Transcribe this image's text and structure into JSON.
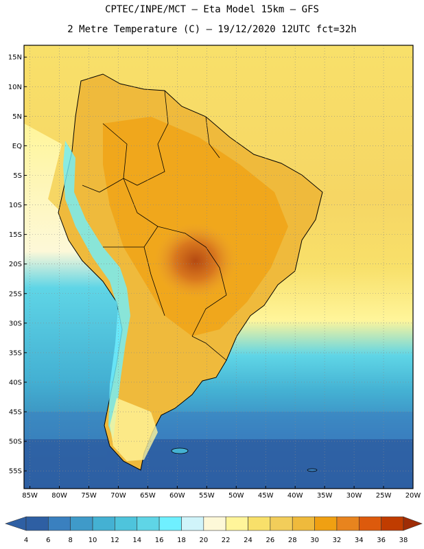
{
  "header": {
    "line1": "CPTEC/INPE/MCT –  Eta Model 15km – GFS",
    "line2": "2 Metre Temperature (C) – 19/12/2020 12UTC fct=32h"
  },
  "map": {
    "lat_labels": [
      "15N",
      "10N",
      "5N",
      "EQ",
      "5S",
      "10S",
      "15S",
      "20S",
      "25S",
      "30S",
      "35S",
      "40S",
      "45S",
      "50S",
      "55S"
    ],
    "lon_labels": [
      "85W",
      "80W",
      "75W",
      "70W",
      "65W",
      "60W",
      "55W",
      "50W",
      "45W",
      "40W",
      "35W",
      "30W",
      "25W",
      "20W"
    ],
    "lat_range": [
      17,
      -58
    ],
    "lon_range": [
      -86,
      -20
    ]
  },
  "legend": {
    "ticks": [
      "4",
      "6",
      "8",
      "10",
      "12",
      "14",
      "16",
      "18",
      "20",
      "22",
      "24",
      "26",
      "28",
      "30",
      "32",
      "34",
      "36",
      "38"
    ],
    "colors": [
      "#2e5fa3",
      "#3a80bf",
      "#3f9ac9",
      "#44b1d3",
      "#4ec4dc",
      "#5fd5e6",
      "#6ff0ff",
      "#d0f4fa",
      "#fdf8d8",
      "#fff59a",
      "#f8e06a",
      "#f2cd5a",
      "#efba3c",
      "#f0a012",
      "#e8841e",
      "#dd5a0c",
      "#c03c00",
      "#9e2c06"
    ]
  },
  "colors": {
    "ocean_cold": "#2e5fa3",
    "ocean_warm": "#f8e06a",
    "land_hot": "#c05818",
    "andes": "#6ff0ff"
  }
}
